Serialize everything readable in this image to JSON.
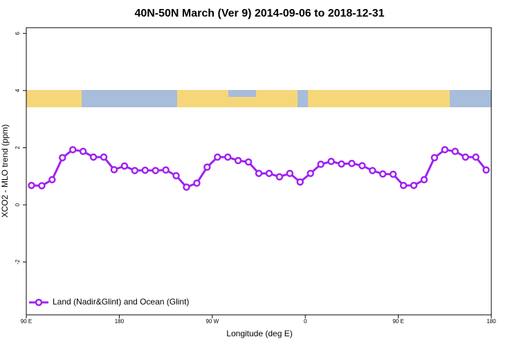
{
  "chart_data": {
    "type": "line",
    "title": "40N-50N March (Ver 9)   2014-09-06 to 2018-12-31",
    "xlabel": "Longitude (deg E)",
    "ylabel": "XCO2 - MLO trend (ppm)",
    "x": [
      95,
      105,
      115,
      125,
      135,
      145,
      155,
      165,
      175,
      185,
      195,
      205,
      215,
      225,
      235,
      245,
      255,
      265,
      275,
      285,
      295,
      305,
      315,
      325,
      335,
      345,
      355,
      365,
      375,
      385,
      395,
      405,
      415,
      425,
      435,
      445,
      455,
      465,
      475,
      485,
      495,
      505,
      515,
      525,
      535
    ],
    "series": [
      {
        "name": "Land (Nadir&Glint) and Ocean (Glint)",
        "color": "#a020f0",
        "values": [
          0.68,
          0.67,
          0.88,
          1.65,
          1.93,
          1.87,
          1.67,
          1.67,
          1.23,
          1.36,
          1.2,
          1.21,
          1.2,
          1.22,
          1.02,
          0.62,
          0.76,
          1.32,
          1.67,
          1.67,
          1.55,
          1.5,
          1.1,
          1.1,
          0.98,
          1.1,
          0.8,
          1.1,
          1.42,
          1.52,
          1.43,
          1.45,
          1.37,
          1.2,
          1.08,
          1.07,
          0.68,
          0.68,
          0.88,
          1.65,
          1.93,
          1.87,
          1.67,
          1.67,
          1.22
        ]
      }
    ],
    "xlim": [
      90,
      540
    ],
    "xticks": [
      {
        "value": 90,
        "label": "90 E"
      },
      180,
      {
        "value": 270,
        "label": "90 W"
      },
      {
        "value": 360,
        "label": "0"
      },
      {
        "value": 450,
        "label": "90 E"
      },
      {
        "value": 540,
        "label": "180"
      }
    ],
    "ylim": [
      -3.85,
      6.2
    ],
    "yticks": [
      -2,
      0,
      2,
      4,
      6
    ],
    "legend": "bottom-left"
  }
}
